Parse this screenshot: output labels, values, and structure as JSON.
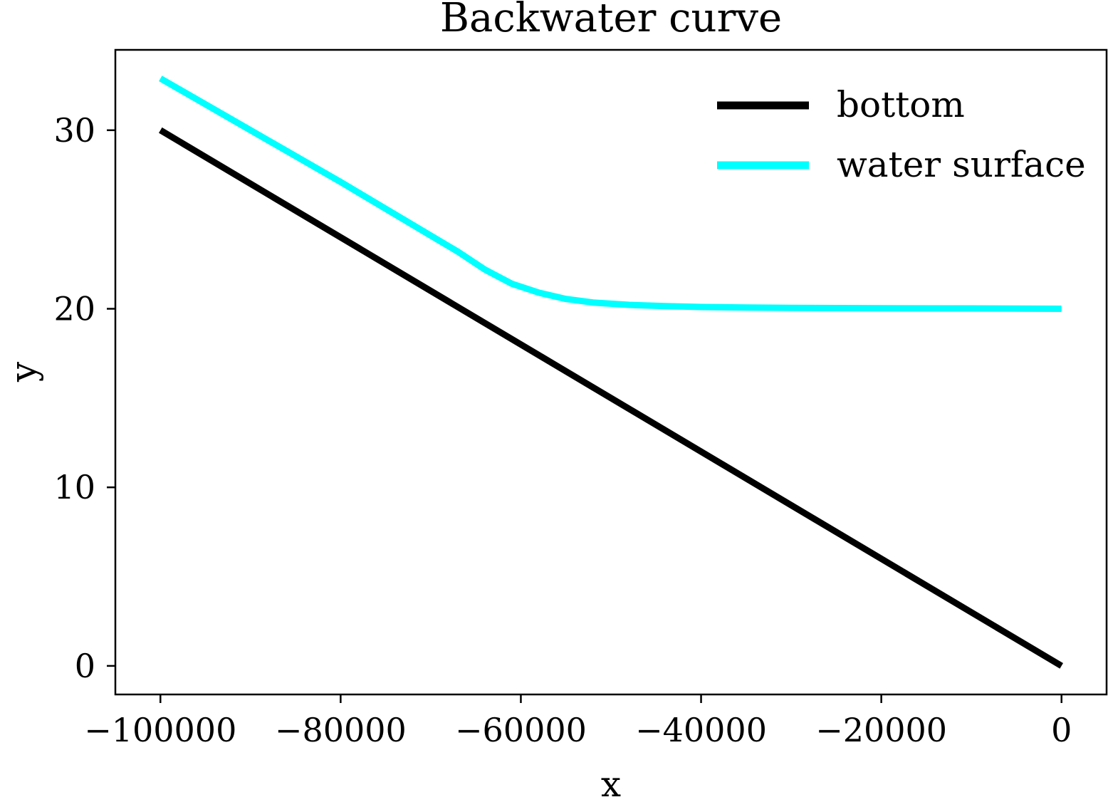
{
  "chart_data": {
    "type": "line",
    "title": "Backwater curve",
    "xlabel": "x",
    "ylabel": "y",
    "xlim": [
      -105000,
      5000
    ],
    "ylim": [
      -1.6,
      34.5
    ],
    "xticks": [
      -100000,
      -80000,
      -60000,
      -40000,
      -20000,
      0
    ],
    "xtick_labels": [
      "−100000",
      "−80000",
      "−60000",
      "−40000",
      "−20000",
      "0"
    ],
    "yticks": [
      0,
      10,
      20,
      30
    ],
    "ytick_labels": [
      "0",
      "10",
      "20",
      "30"
    ],
    "grid": false,
    "legend_position": "top-right",
    "series": [
      {
        "name": "bottom",
        "color": "#000000",
        "x": [
          -100000,
          0
        ],
        "y": [
          30,
          0
        ]
      },
      {
        "name": "water surface",
        "color": "#00ffff",
        "x": [
          -100000,
          -90000,
          -80000,
          -75000,
          -70000,
          -67000,
          -64000,
          -61000,
          -58000,
          -55000,
          -52000,
          -48000,
          -44000,
          -40000,
          -35000,
          -30000,
          -20000,
          -10000,
          0
        ],
        "y": [
          32.9,
          30.0,
          27.1,
          25.6,
          24.1,
          23.2,
          22.2,
          21.4,
          20.9,
          20.55,
          20.35,
          20.22,
          20.15,
          20.1,
          20.07,
          20.05,
          20.03,
          20.02,
          20.0
        ]
      }
    ]
  }
}
